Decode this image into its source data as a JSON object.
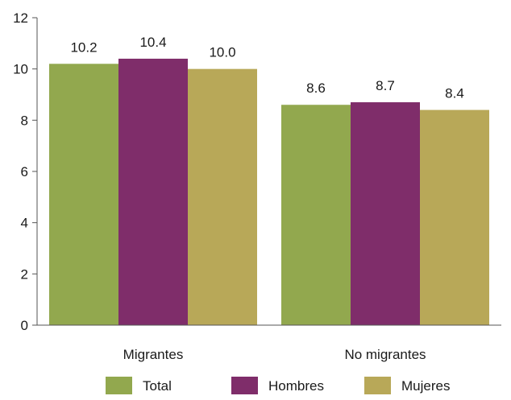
{
  "chart_data": {
    "type": "bar",
    "title": "",
    "xlabel": "",
    "ylabel": "",
    "categories": [
      "Migrantes",
      "No migrantes"
    ],
    "series": [
      {
        "name": "Total",
        "values": [
          10.2,
          8.6
        ],
        "color": "#92a84e"
      },
      {
        "name": "Hombres",
        "values": [
          10.4,
          8.7
        ],
        "color": "#7f2d6a"
      },
      {
        "name": "Mujeres",
        "values": [
          10.0,
          8.4
        ],
        "color": "#b8a858"
      }
    ],
    "value_labels": [
      [
        "10.2",
        "8.6"
      ],
      [
        "10.4",
        "8.7"
      ],
      [
        "10.0",
        "8.4"
      ]
    ],
    "ylim": [
      0,
      12
    ],
    "yticks": [
      0,
      2,
      4,
      6,
      8,
      10,
      12
    ],
    "grid": false,
    "legend_position": "bottom"
  }
}
